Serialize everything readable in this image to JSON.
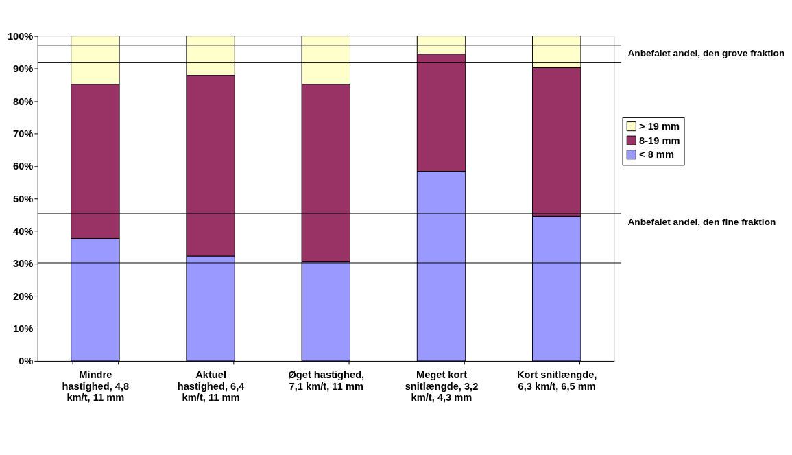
{
  "chart_data": {
    "type": "bar",
    "stacked": true,
    "categories": [
      "Mindre hastighed, 4,8 km/t, 11 mm",
      "Aktuel hastighed, 6,4 km/t, 11 mm",
      "Øget hastighed, 7,1 km/t, 11 mm",
      "Meget kort snitlængde, 3,2 km/t, 4,3 mm",
      "Kort snitlængde, 6,3 km/t, 6,5 mm"
    ],
    "series": [
      {
        "name": "< 8 mm",
        "color": "#9999ff",
        "values": [
          37.7,
          32.3,
          30.5,
          58.4,
          44.5
        ]
      },
      {
        "name": "8-19 mm",
        "color": "#993366",
        "values": [
          47.5,
          55.6,
          54.7,
          36.1,
          45.8
        ]
      },
      {
        "name": "> 19 mm",
        "color": "#ffffcc",
        "values": [
          14.8,
          12.1,
          14.8,
          5.5,
          9.7
        ]
      }
    ],
    "ylim": [
      0,
      100
    ],
    "yticks": [
      {
        "value": 0,
        "label": "0%"
      },
      {
        "value": 10,
        "label": "10%"
      },
      {
        "value": 20,
        "label": "20%"
      },
      {
        "value": 30,
        "label": "30%"
      },
      {
        "value": 40,
        "label": "40%"
      },
      {
        "value": 50,
        "label": "50%"
      },
      {
        "value": 60,
        "label": "60%"
      },
      {
        "value": 70,
        "label": "70%"
      },
      {
        "value": 80,
        "label": "80%"
      },
      {
        "value": 90,
        "label": "90%"
      },
      {
        "value": 100,
        "label": "100%"
      }
    ],
    "ref_lines": [
      {
        "axis": "y",
        "value": 97.2,
        "label": "Anbefalet andel, den grove fraktion"
      },
      {
        "axis": "y",
        "value": 91.8
      },
      {
        "axis": "y",
        "value": 45.4,
        "label": "Anbefalet andel, den fine fraktion"
      },
      {
        "axis": "y",
        "value": 30.2
      }
    ],
    "legend": "right",
    "grid": false
  }
}
